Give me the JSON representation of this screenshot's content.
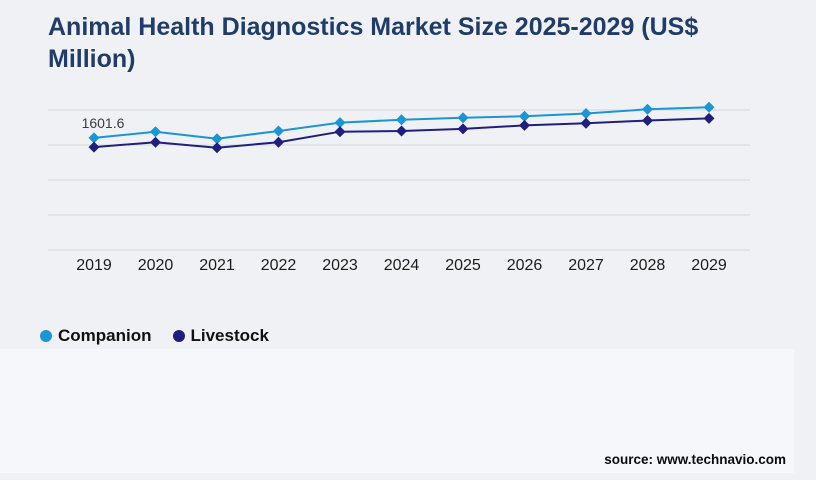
{
  "page": {
    "background": "#f0f1f4",
    "panel_background": "#f6f7fa"
  },
  "header": {
    "title": "Animal Health Diagnostics Market Size 2025-2029 (US$ Million)",
    "title_color": "#1f3d68"
  },
  "legend": {
    "items": [
      {
        "label": "Companion",
        "color": "#1b95d4"
      },
      {
        "label": "Livestock",
        "color": "#201f7d"
      }
    ]
  },
  "footer": {
    "source": "source: www.technavio.com"
  },
  "chart_data": {
    "type": "line",
    "title": "Animal Health Diagnostics Market Size 2025-2029 (US$ Million)",
    "xlabel": "",
    "ylabel": "",
    "categories": [
      "2019",
      "2020",
      "2021",
      "2022",
      "2023",
      "2024",
      "2025",
      "2026",
      "2027",
      "2028",
      "2029"
    ],
    "series": [
      {
        "name": "Companion",
        "color": "#1b95d4",
        "marker": "diamond",
        "values": [
          1601.6,
          1690,
          1590,
          1700,
          1820,
          1860,
          1890,
          1910,
          1950,
          2010,
          2040
        ]
      },
      {
        "name": "Livestock",
        "color": "#201f7d",
        "marker": "diamond",
        "values": [
          1470,
          1540,
          1460,
          1540,
          1690,
          1700,
          1730,
          1780,
          1810,
          1850,
          1880
        ]
      }
    ],
    "data_labels": [
      {
        "series": "Companion",
        "category": "2019",
        "text": "1601.6"
      }
    ],
    "y_axis": {
      "min": 0,
      "max": 2150,
      "gridline_values": [
        0,
        500,
        1000,
        1500,
        2000
      ],
      "labels_visible": false
    },
    "grid": true,
    "grid_color": "#d6d6d6",
    "x_tick_color": "#1c1c1c",
    "data_label_color": "#3c3c3c",
    "legend_position": "bottom-left"
  }
}
